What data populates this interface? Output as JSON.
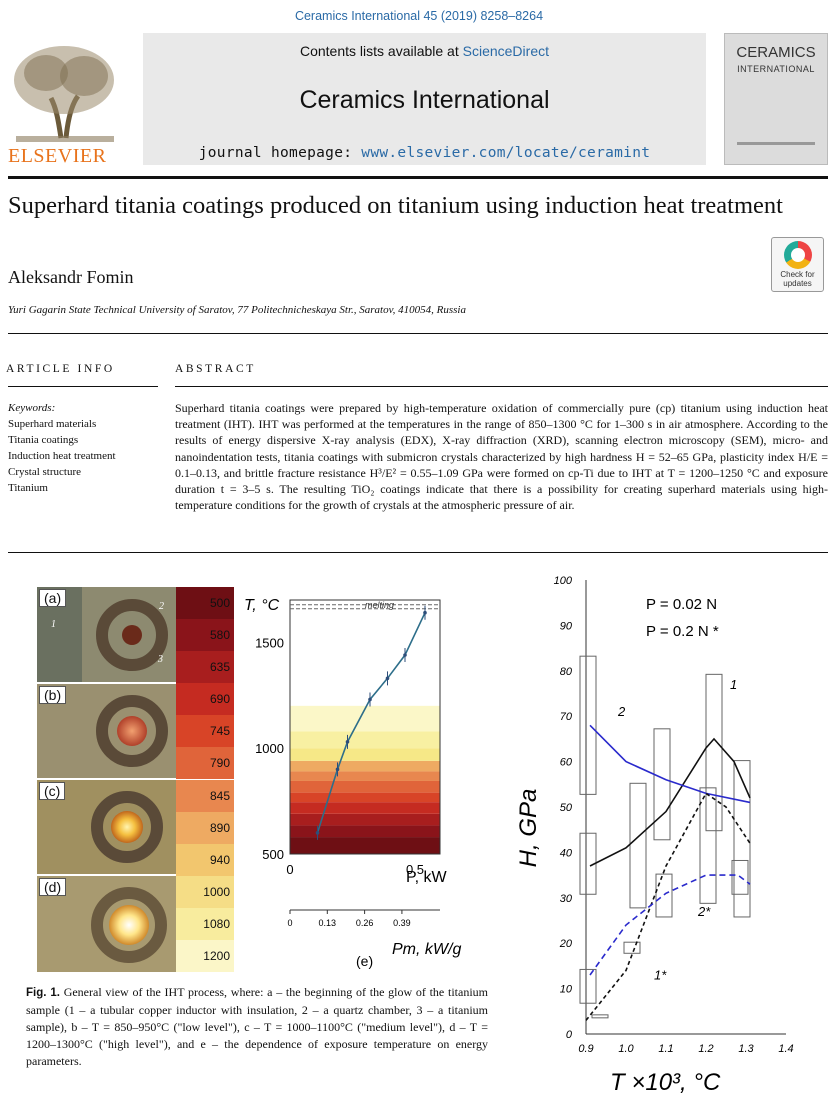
{
  "header": {
    "journal_ref": "Ceramics International 45 (2019) 8258–8264",
    "publisher": "ELSEVIER",
    "contents_prefix": "Contents lists available at ",
    "contents_link": "ScienceDirect",
    "journal_name": "Ceramics International",
    "homepage_prefix": "journal homepage: ",
    "homepage_url": "www.elsevier.com/locate/ceramint",
    "cover_title_line1": "CERAMICS",
    "cover_title_line2": "INTERNATIONAL"
  },
  "article": {
    "title": "Superhard titania coatings produced on titanium using induction heat treatment",
    "check_updates": "Check for updates",
    "author": "Aleksandr Fomin",
    "affiliation": "Yuri Gagarin State Technical University of Saratov, 77 Politechnicheskaya Str., Saratov, 410054, Russia",
    "article_info_heading": "ARTICLE INFO",
    "abstract_heading": "ABSTRACT",
    "keywords_label": "Keywords:",
    "keywords": [
      "Superhard materials",
      "Titania coatings",
      "Induction heat treatment",
      "Crystal structure",
      "Titanium"
    ],
    "abstract_text": "Superhard titania coatings were prepared by high-temperature oxidation of commercially pure (cp) titanium using induction heat treatment (IHT). IHT was performed at the temperatures in the range of 850–1300 °C for 1–300 s in air atmosphere. According to the results of energy dispersive X-ray analysis (EDX), X-ray diffraction (XRD), scanning electron microscopy (SEM), micro- and nanoindentation tests, titania coatings with submicron crystals characterized by high hardness H = 52–65 GPa, plasticity index H/E = 0.1–0.13, and brittle fracture resistance H³/E² = 0.55–1.09 GPa were formed on cp-Ti due to IHT at T = 1200–1250 °C and exposure duration t = 3–5 s. The resulting TiO₂ coatings indicate that there is a possibility for creating superhard materials using high-temperature conditions for the growth of crystals at the atmospheric pressure of air."
  },
  "figure": {
    "panel_labels": [
      "(a)",
      "(b)",
      "(c)",
      "(d)"
    ],
    "sample_labels": [
      "1",
      "2",
      "3"
    ],
    "colorbar_values": [
      "500",
      "580",
      "635",
      "690",
      "745",
      "790",
      "845",
      "890",
      "940",
      "1000",
      "1080",
      "1200"
    ],
    "colorbar_colors": [
      "#6e0f14",
      "#8a141a",
      "#a81e1e",
      "#c52b21",
      "#d84427",
      "#e0643a",
      "#e8874f",
      "#eeaa62",
      "#f2c66e",
      "#f5dd86",
      "#f8ec9e",
      "#fbf6c8"
    ],
    "caption_label": "Fig. 1.",
    "caption_text": "General view of the IHT process, where: a – the beginning of the glow of the titanium sample (1 – a tubular copper inductor with insulation, 2 – a quartz chamber, 3 – a titanium sample), b – T = 850–950°C (\"low level\"), c – T = 1000–1100°C (\"medium level\"), d – T = 1200–1300°C (\"high level\"), and e – the dependence of exposure temperature on energy parameters.",
    "panel_e_label": "(e)"
  },
  "chart_data": [
    {
      "type": "line",
      "ylabel": "T, °C",
      "xlabel": "P, kW",
      "x2label": "Pm, kW/g",
      "annotation": "melting",
      "melting_temperature": 1668,
      "yticks": [
        "500",
        "1000",
        "1500"
      ],
      "xticks": [
        "0",
        "0.5"
      ],
      "x2ticks": [
        "0",
        "0.13",
        "0.26",
        "0.39"
      ],
      "xlim": [
        0,
        0.6
      ],
      "ylim": [
        500,
        1700
      ],
      "series": [
        {
          "x": [
            0.11,
            0.19,
            0.23,
            0.32,
            0.39,
            0.46,
            0.54
          ],
          "y": [
            600,
            900,
            1030,
            1230,
            1330,
            1440,
            1640
          ]
        }
      ]
    },
    {
      "type": "line",
      "ylabel": "H, GPa",
      "xlabel": "T ×10³, °C",
      "legend": [
        "P = 0.02 N",
        "P = 0.2 N *"
      ],
      "xticks": [
        "0.9",
        "1.0",
        "1.1",
        "1.2",
        "1.3",
        "1.4"
      ],
      "yticks": [
        "0",
        "10",
        "20",
        "30",
        "40",
        "50",
        "60",
        "70",
        "80",
        "90",
        "100"
      ],
      "xlim": [
        0.9,
        1.4
      ],
      "ylim": [
        0,
        100
      ],
      "series": [
        {
          "name": "1",
          "x": [
            0.91,
            1.0,
            1.1,
            1.2,
            1.22,
            1.27,
            1.31
          ],
          "y": [
            37,
            41,
            49,
            63,
            65,
            60,
            52
          ]
        },
        {
          "name": "2",
          "x": [
            0.91,
            1.0,
            1.1,
            1.2,
            1.31
          ],
          "y": [
            68,
            60,
            56,
            53,
            51
          ]
        },
        {
          "name": "1*",
          "x": [
            0.9,
            1.0,
            1.1,
            1.2,
            1.25,
            1.31
          ],
          "y": [
            3,
            14,
            37,
            53,
            50,
            42
          ]
        },
        {
          "name": "2*",
          "x": [
            0.91,
            1.0,
            1.1,
            1.2,
            1.28,
            1.31
          ],
          "y": [
            13,
            24,
            31,
            35,
            35,
            33
          ]
        }
      ],
      "curve_labels": [
        "1",
        "2",
        "1*",
        "2*"
      ]
    }
  ]
}
